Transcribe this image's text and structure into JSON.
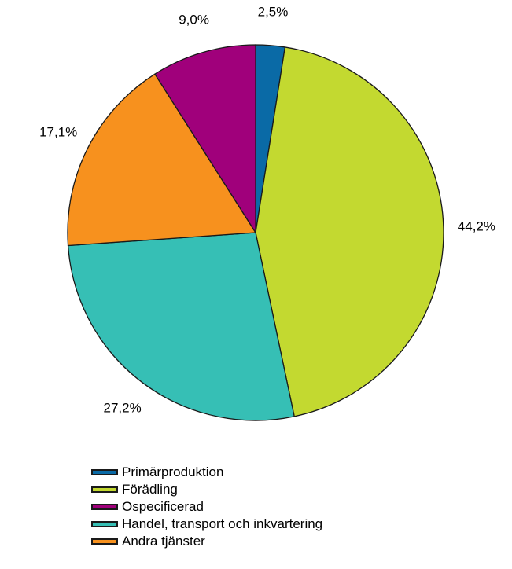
{
  "chart_data": {
    "type": "pie",
    "title": "",
    "categories": [
      "Primärproduktion",
      "Förädling",
      "Ospecificerad",
      "Handel, transport och inkvartering",
      "Andra tjänster"
    ],
    "values": [
      2.5,
      44.2,
      9.0,
      27.2,
      17.1
    ],
    "value_labels": [
      "2,5%",
      "44,2%",
      "9,0%",
      "27,2%",
      "17,1%"
    ],
    "colors": [
      "#0a6aa6",
      "#c3d930",
      "#a0007b",
      "#36bfb5",
      "#f7911e"
    ],
    "slice_order": [
      0,
      1,
      3,
      4,
      2
    ],
    "start": "top",
    "direction": "clockwise",
    "legend": "bottom-left"
  }
}
